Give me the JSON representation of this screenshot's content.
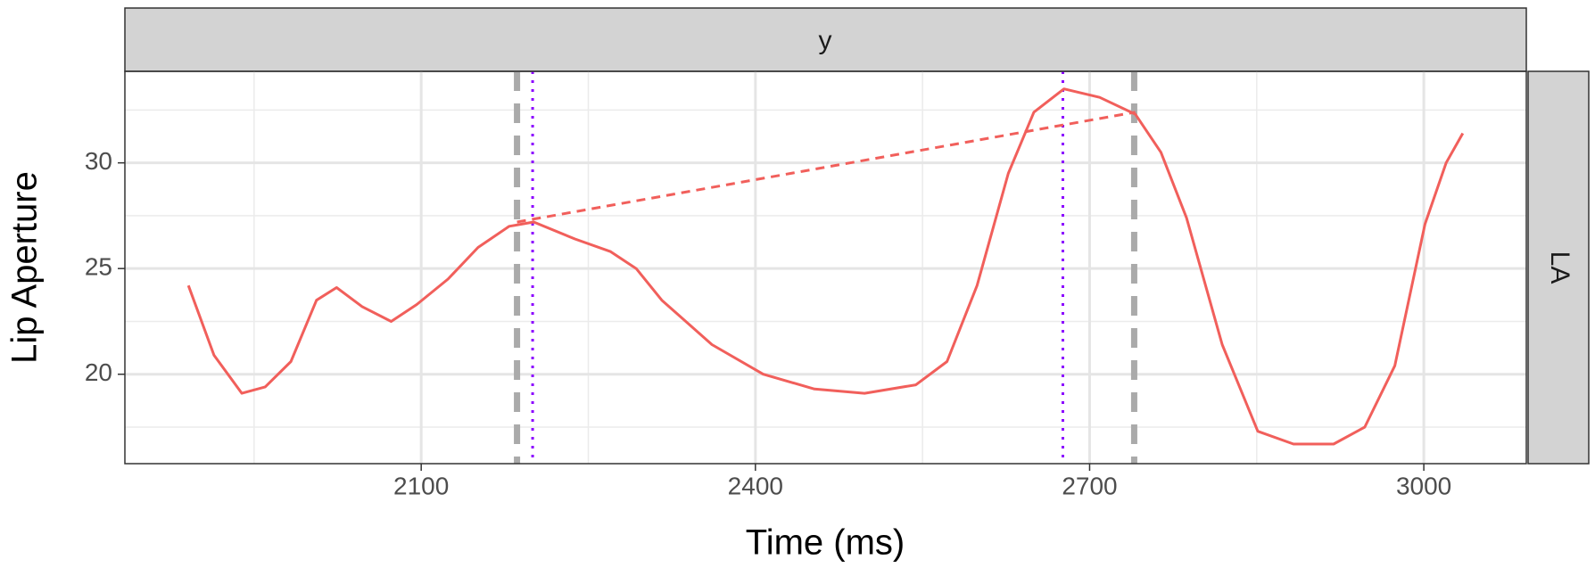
{
  "chart_data": {
    "type": "line",
    "facet_top": "y",
    "facet_right": "LA",
    "xlabel": "Time (ms)",
    "ylabel": "Lip Aperture",
    "xlim": [
      1834,
      3092
    ],
    "ylim": [
      15.77,
      34.33
    ],
    "xticks": [
      2100,
      2400,
      2700,
      3000
    ],
    "yticks": [
      20,
      25,
      30
    ],
    "x_minor_grid": [
      1950,
      2250,
      2550,
      2850
    ],
    "y_minor_grid": [
      17.5,
      22.5,
      27.5,
      32.5
    ],
    "grid": true,
    "series": [
      {
        "color": "#f15f5b",
        "style": "solid",
        "x": [
          1891,
          1914,
          1939,
          1960,
          1983,
          2006,
          2024,
          2047,
          2073,
          2096,
          2124,
          2151,
          2179,
          2201,
          2238,
          2270,
          2293,
          2316,
          2361,
          2407,
          2453,
          2498,
          2544,
          2572,
          2599,
          2627,
          2650,
          2677,
          2709,
          2741,
          2764,
          2787,
          2819,
          2851,
          2883,
          2919,
          2947,
          2974,
          3001,
          3020,
          3035
        ],
        "values": [
          24.2,
          20.9,
          19.1,
          19.4,
          20.6,
          23.5,
          24.1,
          23.2,
          22.5,
          23.3,
          24.5,
          26.0,
          27.0,
          27.2,
          26.4,
          25.8,
          25.0,
          23.5,
          21.4,
          20.0,
          19.3,
          19.1,
          19.5,
          20.6,
          24.2,
          29.5,
          32.4,
          33.5,
          33.1,
          32.3,
          30.5,
          27.4,
          21.4,
          17.3,
          16.7,
          16.7,
          17.5,
          20.4,
          27.1,
          30.0,
          31.4
        ]
      },
      {
        "color": "#f15f5b",
        "style": "dashed",
        "x": [
          2186,
          2741
        ],
        "values": [
          27.2,
          32.4
        ]
      }
    ],
    "vlines": [
      {
        "value": 2186,
        "color": "#aaaaaa",
        "style": "dashed"
      },
      {
        "value": 2740,
        "color": "#aaaaaa",
        "style": "dashed"
      },
      {
        "value": 2200,
        "color": "#8b00ff",
        "style": "dotted"
      },
      {
        "value": 2676,
        "color": "#8b00ff",
        "style": "dotted"
      }
    ]
  }
}
